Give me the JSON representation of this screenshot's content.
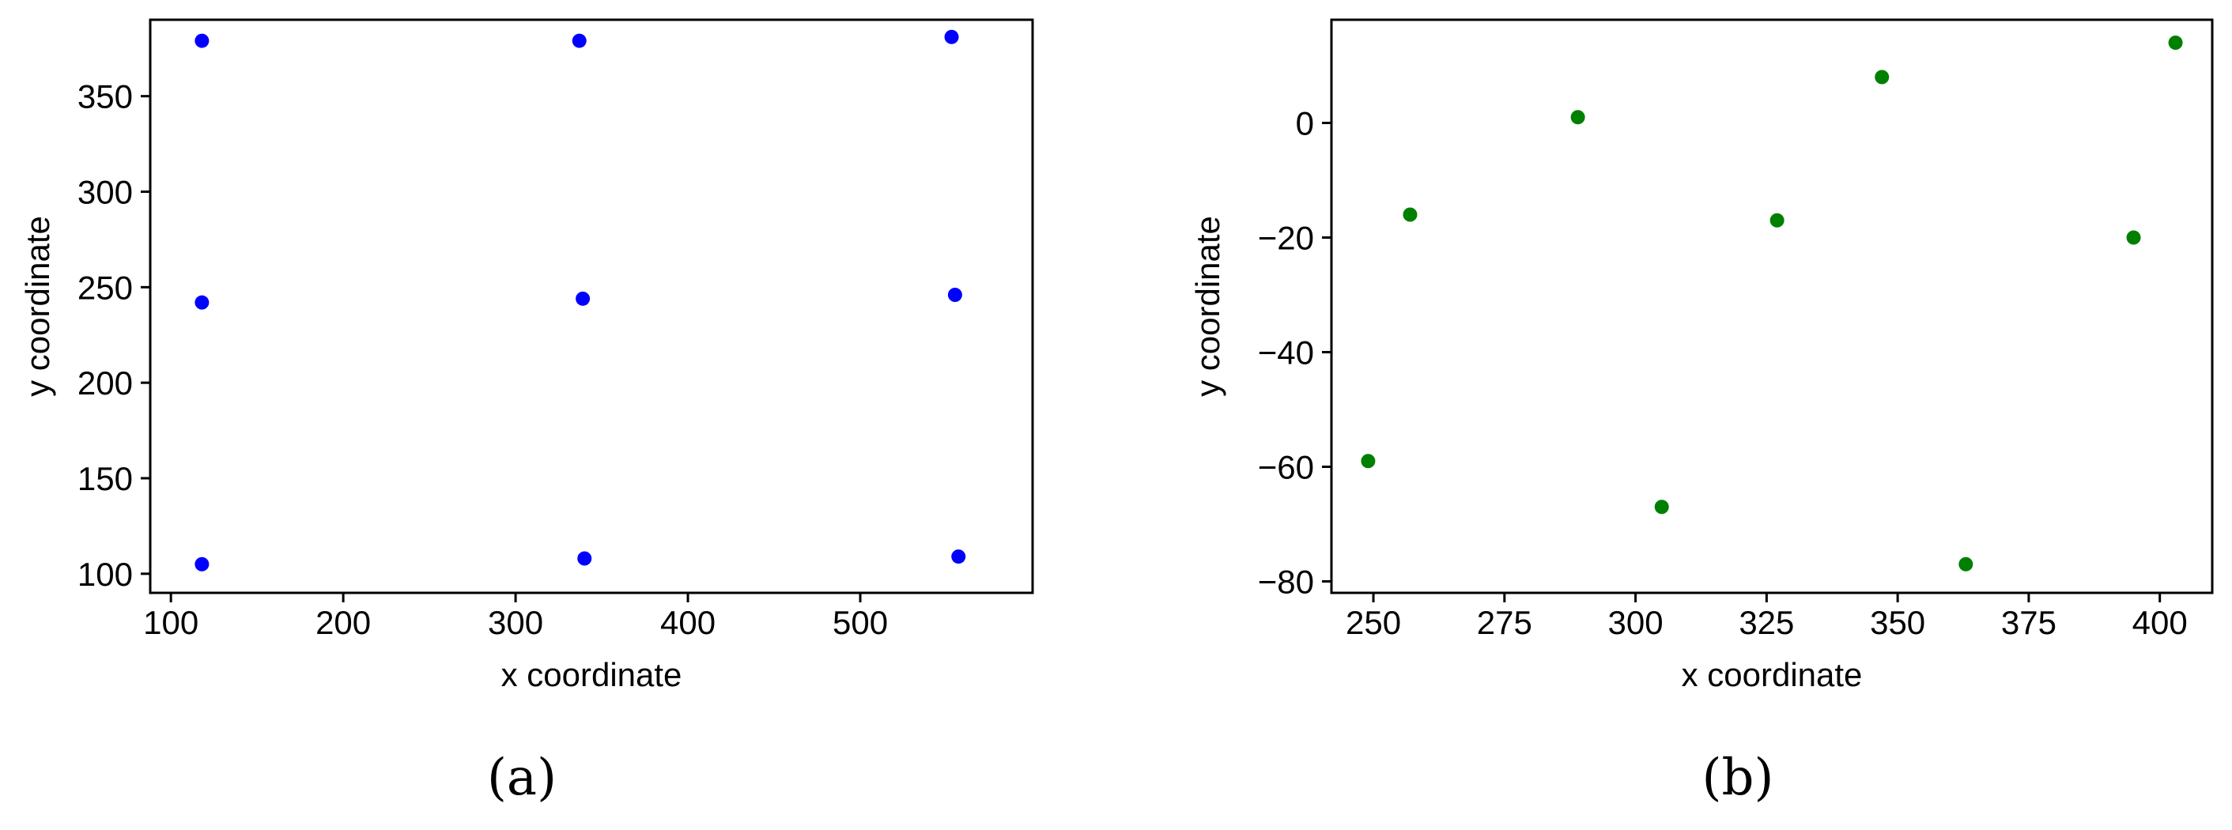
{
  "chart_data": [
    {
      "id": "a",
      "type": "scatter",
      "panel_label": "(a)",
      "xlabel": "x coordinate",
      "ylabel": "y coordinate",
      "xlim": [
        88,
        600
      ],
      "ylim": [
        90,
        390
      ],
      "xticks": [
        100,
        200,
        300,
        400,
        500
      ],
      "yticks": [
        100,
        150,
        200,
        250,
        300,
        350
      ],
      "color": "#0000ff",
      "grid": false,
      "points": [
        {
          "x": 118,
          "y": 379
        },
        {
          "x": 337,
          "y": 379
        },
        {
          "x": 553,
          "y": 381
        },
        {
          "x": 118,
          "y": 242
        },
        {
          "x": 339,
          "y": 244
        },
        {
          "x": 555,
          "y": 246
        },
        {
          "x": 118,
          "y": 105
        },
        {
          "x": 340,
          "y": 108
        },
        {
          "x": 557,
          "y": 109
        }
      ]
    },
    {
      "id": "b",
      "type": "scatter",
      "panel_label": "(b)",
      "xlabel": "x coordinate",
      "ylabel": "y coordinate",
      "xlim": [
        242,
        410
      ],
      "ylim": [
        -82,
        18
      ],
      "xticks": [
        250,
        275,
        300,
        325,
        350,
        375,
        400
      ],
      "yticks": [
        -80,
        -60,
        -40,
        -20,
        0
      ],
      "color": "#008000",
      "grid": false,
      "points": [
        {
          "x": 249,
          "y": -59
        },
        {
          "x": 257,
          "y": -16
        },
        {
          "x": 289,
          "y": 1
        },
        {
          "x": 305,
          "y": -67
        },
        {
          "x": 327,
          "y": -17
        },
        {
          "x": 347,
          "y": 8
        },
        {
          "x": 363,
          "y": -77
        },
        {
          "x": 395,
          "y": -20
        },
        {
          "x": 403,
          "y": 14
        }
      ]
    }
  ]
}
